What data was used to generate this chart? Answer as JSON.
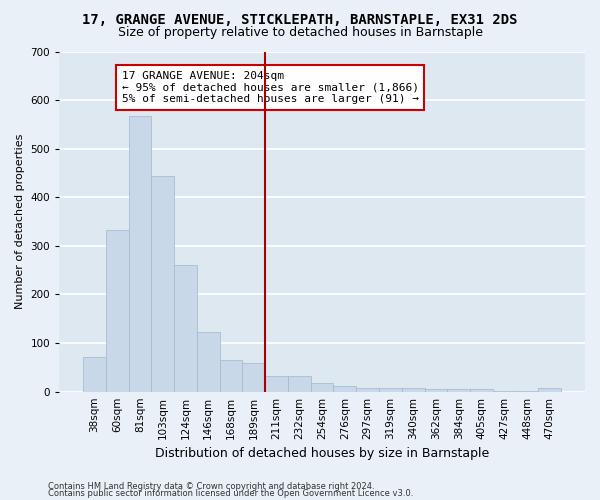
{
  "title1": "17, GRANGE AVENUE, STICKLEPATH, BARNSTAPLE, EX31 2DS",
  "title2": "Size of property relative to detached houses in Barnstaple",
  "xlabel": "Distribution of detached houses by size in Barnstaple",
  "ylabel": "Number of detached properties",
  "categories": [
    "38sqm",
    "60sqm",
    "81sqm",
    "103sqm",
    "124sqm",
    "146sqm",
    "168sqm",
    "189sqm",
    "211sqm",
    "232sqm",
    "254sqm",
    "276sqm",
    "297sqm",
    "319sqm",
    "340sqm",
    "362sqm",
    "384sqm",
    "405sqm",
    "427sqm",
    "448sqm",
    "470sqm"
  ],
  "values": [
    72,
    332,
    567,
    443,
    260,
    122,
    65,
    60,
    33,
    33,
    17,
    12,
    8,
    7,
    7,
    5,
    5,
    5,
    2,
    2,
    7
  ],
  "bar_color": "#c8d8e8",
  "bar_edgecolor": "#a0b8cc",
  "vline_index": 8,
  "vline_color": "#aa0000",
  "annotation_text": "17 GRANGE AVENUE: 204sqm\n← 95% of detached houses are smaller (1,866)\n5% of semi-detached houses are larger (91) →",
  "annotation_box_color": "#ffffff",
  "annotation_box_edgecolor": "#cc0000",
  "ylim": [
    0,
    700
  ],
  "yticks": [
    0,
    100,
    200,
    300,
    400,
    500,
    600,
    700
  ],
  "fig_background_color": "#eaf0f8",
  "background_color": "#dde8f0",
  "grid_color": "#ffffff",
  "footer1": "Contains HM Land Registry data © Crown copyright and database right 2024.",
  "footer2": "Contains public sector information licensed under the Open Government Licence v3.0.",
  "title1_fontsize": 10,
  "title2_fontsize": 9,
  "xlabel_fontsize": 9,
  "ylabel_fontsize": 8,
  "tick_fontsize": 7.5,
  "annotation_fontsize": 8
}
